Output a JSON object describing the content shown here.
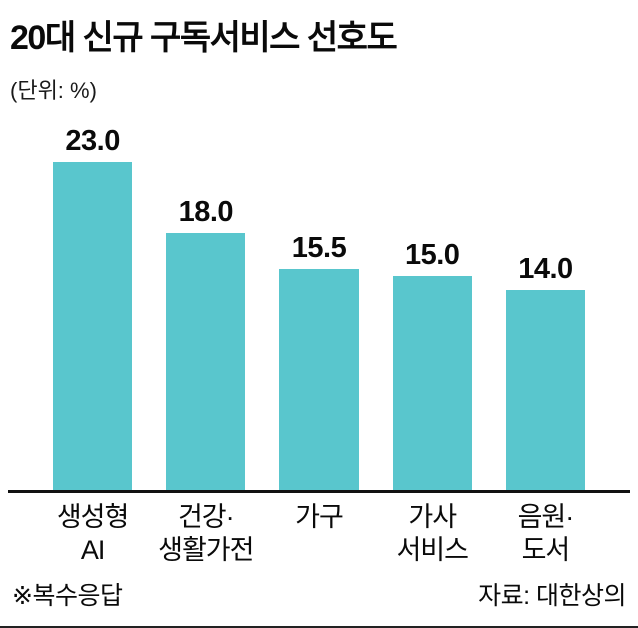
{
  "chart_data": {
    "type": "bar",
    "title": "20대 신규 구독서비스 선호도",
    "unit_label": "(단위: %)",
    "categories": [
      "생성형\nAI",
      "건강·\n생활가전",
      "가구",
      "가사\n서비스",
      "음원·\n도서"
    ],
    "values": [
      23.0,
      18.0,
      15.5,
      15.0,
      14.0
    ],
    "value_labels": [
      "23.0",
      "18.0",
      "15.5",
      "15.0",
      "14.0"
    ],
    "ylim": [
      0,
      23
    ],
    "bar_color": "#59c6cd",
    "legend": "none",
    "grid": false
  },
  "footer": {
    "note": "※복수응답",
    "source": "자료: 대한상의"
  }
}
